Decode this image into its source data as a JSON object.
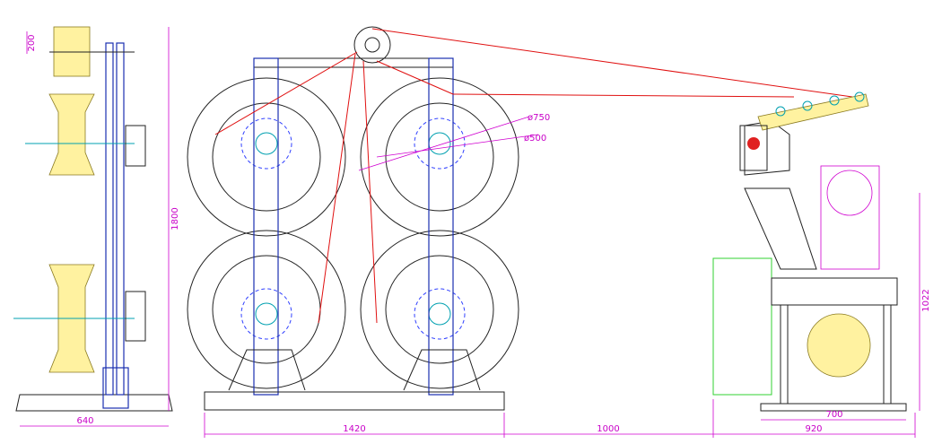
{
  "dimensions": {
    "side_view": {
      "top_height": "200",
      "total_height": "1800",
      "base_width": "640"
    },
    "payoff": {
      "outer_diameter": "ø750",
      "inner_diameter": "ø500",
      "width": "1420"
    },
    "gap": "1000",
    "takeup": {
      "width": "920",
      "frame_width": "700",
      "height": "1022"
    }
  }
}
